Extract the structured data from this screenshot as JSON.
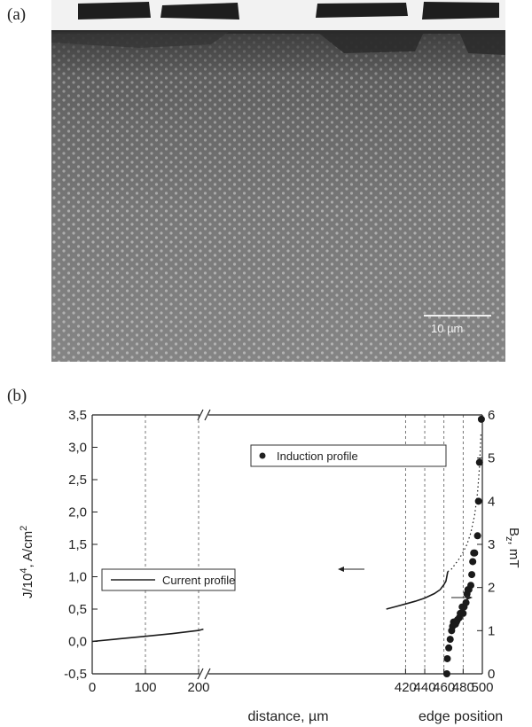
{
  "panels": {
    "a_label": "(a)",
    "b_label": "(b)"
  },
  "micrograph": {
    "scale_bar_label": "10 µm"
  },
  "chart_data": {
    "type": "line",
    "left_axis": {
      "label_main": "J/10",
      "label_exp": "4",
      "label_rest": ", A/cm",
      "label_exp2": "2",
      "ylim": [
        -0.5,
        3.5
      ],
      "tick_values": [
        -0.5,
        0.0,
        0.5,
        1.0,
        1.5,
        2.0,
        2.5,
        3.0,
        3.5
      ],
      "tick_labels": [
        "-0,5",
        "0,0",
        "0,5",
        "1,0",
        "1,5",
        "2,0",
        "2,5",
        "3,0",
        "3,5"
      ]
    },
    "right_axis": {
      "label_main": "B",
      "label_sub": "z",
      "label_rest": ", mT",
      "ylim": [
        0,
        6
      ],
      "tick_values": [
        0,
        1,
        2,
        3,
        4,
        5,
        6
      ],
      "tick_labels": [
        "0",
        "1",
        "2",
        "3",
        "4",
        "5",
        "6"
      ]
    },
    "x_axis": {
      "xlabel": "distance, µm",
      "xlabel2": "edge position",
      "segment1": {
        "range": [
          0,
          210
        ],
        "ticks": [
          0,
          100,
          200
        ],
        "tick_labels": [
          "0",
          "100",
          "200"
        ]
      },
      "segment2": {
        "range": [
          210,
          500
        ],
        "ticks": [
          420,
          440,
          460,
          480,
          500
        ],
        "tick_labels": [
          "420",
          "440",
          "460",
          "480",
          "500"
        ]
      },
      "grid_lines": [
        100,
        200,
        420,
        440,
        460,
        480
      ]
    },
    "series": [
      {
        "name": "Current profile",
        "axis": "left",
        "style": "solid",
        "points": [
          [
            0,
            0.0
          ],
          [
            50,
            0.04
          ],
          [
            100,
            0.08
          ],
          [
            150,
            0.12
          ],
          [
            200,
            0.17
          ],
          [
            209,
            0.19
          ]
        ]
      },
      {
        "name": "Current profile",
        "axis": "left",
        "style": "solid",
        "points": [
          [
            400,
            0.5
          ],
          [
            410,
            0.54
          ],
          [
            420,
            0.58
          ],
          [
            430,
            0.62
          ],
          [
            440,
            0.67
          ],
          [
            450,
            0.74
          ],
          [
            456,
            0.8
          ],
          [
            460,
            0.88
          ],
          [
            462,
            0.93
          ],
          [
            463,
            1.0
          ],
          [
            464,
            1.08
          ]
        ]
      },
      {
        "name": "",
        "axis": "left",
        "style": "dotted",
        "points": [
          [
            464,
            1.08
          ],
          [
            468,
            1.12
          ],
          [
            472,
            1.2
          ],
          [
            476,
            1.28
          ],
          [
            480,
            1.38
          ],
          [
            484,
            1.5
          ],
          [
            488,
            1.68
          ],
          [
            492,
            1.95
          ],
          [
            495,
            2.3
          ],
          [
            497,
            2.7
          ],
          [
            498.5,
            3.2
          ]
        ]
      },
      {
        "name": "Induction profile",
        "axis": "right",
        "style": "markers",
        "points": [
          [
            463,
            0.0
          ],
          [
            463.5,
            0.35
          ],
          [
            465,
            0.6
          ],
          [
            466.5,
            0.8
          ],
          [
            468,
            1.0
          ],
          [
            469,
            1.1
          ],
          [
            470,
            1.2
          ],
          [
            471,
            1.2
          ],
          [
            472,
            1.15
          ],
          [
            473,
            1.2
          ],
          [
            474,
            1.25
          ],
          [
            476,
            1.3
          ],
          [
            477,
            1.4
          ],
          [
            479,
            1.55
          ],
          [
            480,
            1.4
          ],
          [
            481,
            1.55
          ],
          [
            483,
            1.65
          ],
          [
            484,
            1.85
          ],
          [
            485,
            1.95
          ],
          [
            486,
            1.95
          ],
          [
            488,
            2.05
          ],
          [
            489,
            2.3
          ],
          [
            490,
            2.6
          ],
          [
            491,
            2.8
          ],
          [
            492,
            2.8
          ],
          [
            495,
            3.2
          ],
          [
            496,
            4.0
          ],
          [
            497,
            4.9
          ],
          [
            499,
            5.9
          ]
        ]
      }
    ],
    "legend_current": "Current profile",
    "legend_induction": "Induction profile"
  }
}
